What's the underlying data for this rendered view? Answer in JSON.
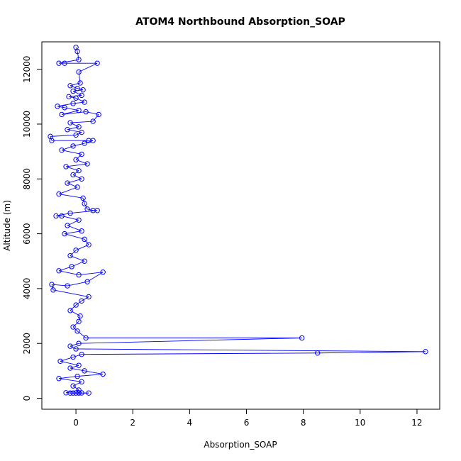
{
  "chart_data": {
    "type": "line",
    "title": "ATOM4 Northbound Absorption_SOAP",
    "xlabel": "Absorption_SOAP",
    "ylabel": "Altitude (m)",
    "xlim": [
      -1.2,
      12.8
    ],
    "ylim": [
      -400,
      13000
    ],
    "x_ticks": [
      0,
      2,
      4,
      6,
      8,
      10,
      12
    ],
    "y_ticks": [
      0,
      2000,
      4000,
      6000,
      8000,
      10000,
      12000
    ],
    "grid": false,
    "legend": "none",
    "color": "#0000ff",
    "series": [
      {
        "marker": "open-circle",
        "points": [
          [
            0.0,
            12800
          ],
          [
            0.05,
            12650
          ],
          [
            0.1,
            12350
          ],
          [
            -0.6,
            12220
          ],
          [
            -0.4,
            12220
          ],
          [
            0.75,
            12220
          ],
          [
            0.1,
            11900
          ],
          [
            0.15,
            11500
          ],
          [
            -0.2,
            11400
          ],
          [
            0.05,
            11300
          ],
          [
            0.25,
            11250
          ],
          [
            -0.1,
            11200
          ],
          [
            0.2,
            11050
          ],
          [
            -0.25,
            11000
          ],
          [
            0.0,
            10950
          ],
          [
            0.3,
            10800
          ],
          [
            -0.1,
            10750
          ],
          [
            -0.65,
            10650
          ],
          [
            -0.4,
            10600
          ],
          [
            0.1,
            10500
          ],
          [
            -0.5,
            10350
          ],
          [
            0.35,
            10450
          ],
          [
            0.8,
            10350
          ],
          [
            0.6,
            10100
          ],
          [
            -0.2,
            10050
          ],
          [
            0.1,
            9900
          ],
          [
            -0.3,
            9800
          ],
          [
            0.2,
            9700
          ],
          [
            0.0,
            9600
          ],
          [
            -0.9,
            9550
          ],
          [
            -0.85,
            9400
          ],
          [
            0.45,
            9400
          ],
          [
            0.6,
            9400
          ],
          [
            0.3,
            9300
          ],
          [
            -0.1,
            9200
          ],
          [
            -0.5,
            9050
          ],
          [
            0.2,
            8900
          ],
          [
            0.0,
            8700
          ],
          [
            0.4,
            8550
          ],
          [
            -0.35,
            8450
          ],
          [
            0.1,
            8300
          ],
          [
            -0.1,
            8150
          ],
          [
            0.2,
            8000
          ],
          [
            -0.3,
            7850
          ],
          [
            0.05,
            7700
          ],
          [
            -0.6,
            7450
          ],
          [
            0.25,
            7300
          ],
          [
            0.3,
            7100
          ],
          [
            0.4,
            6900
          ],
          [
            0.6,
            6850
          ],
          [
            0.75,
            6850
          ],
          [
            -0.2,
            6750
          ],
          [
            -0.7,
            6650
          ],
          [
            -0.5,
            6650
          ],
          [
            0.1,
            6500
          ],
          [
            -0.3,
            6300
          ],
          [
            0.2,
            6100
          ],
          [
            -0.4,
            6000
          ],
          [
            0.3,
            5800
          ],
          [
            0.45,
            5600
          ],
          [
            0.0,
            5400
          ],
          [
            -0.2,
            5200
          ],
          [
            0.3,
            5000
          ],
          [
            -0.15,
            4800
          ],
          [
            -0.6,
            4650
          ],
          [
            0.1,
            4500
          ],
          [
            0.95,
            4600
          ],
          [
            0.4,
            4250
          ],
          [
            -0.3,
            4100
          ],
          [
            -0.85,
            4150
          ],
          [
            -0.8,
            3950
          ],
          [
            0.45,
            3700
          ],
          [
            0.2,
            3550
          ],
          [
            0.0,
            3400
          ],
          [
            -0.2,
            3200
          ],
          [
            0.15,
            3000
          ],
          [
            0.1,
            2800
          ],
          [
            -0.1,
            2600
          ],
          [
            0.05,
            2450
          ],
          [
            0.35,
            2200
          ],
          [
            7.95,
            2200
          ],
          [
            0.1,
            2000
          ],
          [
            -0.2,
            1900
          ],
          [
            0.0,
            1800
          ],
          [
            12.3,
            1700
          ],
          [
            8.5,
            1650
          ],
          [
            0.2,
            1600
          ],
          [
            -0.1,
            1500
          ],
          [
            -0.55,
            1350
          ],
          [
            0.1,
            1200
          ],
          [
            -0.2,
            1100
          ],
          [
            0.3,
            1000
          ],
          [
            0.95,
            880
          ],
          [
            0.05,
            800
          ],
          [
            -0.6,
            720
          ],
          [
            0.2,
            600
          ],
          [
            -0.1,
            450
          ],
          [
            0.1,
            300
          ],
          [
            -0.35,
            200
          ],
          [
            -0.2,
            190
          ],
          [
            0.1,
            190
          ],
          [
            0.45,
            190
          ],
          [
            0.0,
            190
          ],
          [
            0.2,
            195
          ],
          [
            -0.1,
            190
          ],
          [
            0.1,
            200
          ]
        ]
      }
    ]
  }
}
